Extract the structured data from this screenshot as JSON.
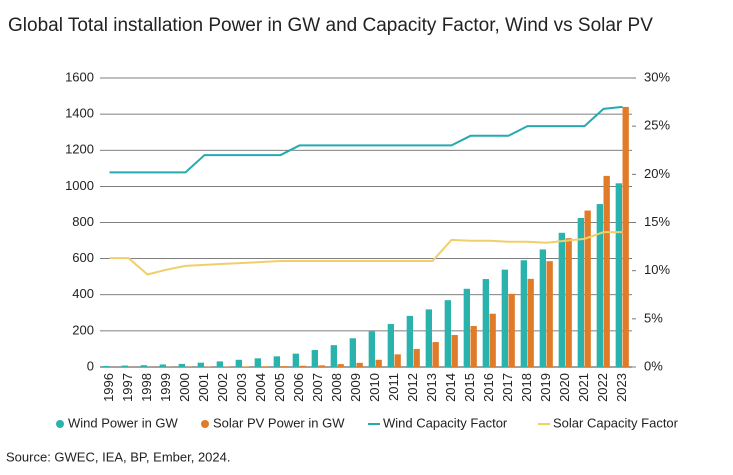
{
  "chart_data": {
    "type": "bar",
    "title": "Global Total installation Power in GW and Capacity Factor, Wind vs Solar PV",
    "source": "Source: GWEC, IEA, BP, Ember, 2024.",
    "categories": [
      "1996",
      "1997",
      "1998",
      "1999",
      "2000",
      "2001",
      "2002",
      "2003",
      "2004",
      "2005",
      "2006",
      "2007",
      "2008",
      "2009",
      "2010",
      "2011",
      "2012",
      "2013",
      "2014",
      "2015",
      "2016",
      "2017",
      "2018",
      "2019",
      "2020",
      "2021",
      "2022",
      "2023"
    ],
    "series": [
      {
        "name": "Wind Power in GW",
        "type": "bar",
        "axis": "y",
        "color": "#2ab3ad",
        "values": [
          6,
          8,
          10,
          14,
          17,
          24,
          31,
          40,
          48,
          59,
          74,
          94,
          121,
          159,
          198,
          238,
          283,
          319,
          370,
          433,
          487,
          539,
          591,
          651,
          743,
          825,
          902,
          1017
        ]
      },
      {
        "name": "Solar PV Power in GW",
        "type": "bar",
        "axis": "y",
        "color": "#e07b2a",
        "values": [
          0.3,
          0.4,
          0.5,
          1,
          1,
          2,
          2,
          3,
          4,
          5,
          7,
          9,
          16,
          23,
          40,
          70,
          100,
          138,
          177,
          227,
          295,
          405,
          488,
          586,
          713,
          866,
          1058,
          1440
        ]
      },
      {
        "name": "Wind Capacity Factor",
        "type": "line",
        "axis": "y2",
        "color": "#26aab0",
        "values": [
          20.2,
          20.2,
          20.2,
          20.2,
          20.2,
          22,
          22,
          22,
          22,
          22,
          23,
          23,
          23,
          23,
          23,
          23,
          23,
          23,
          23,
          24,
          24,
          24,
          25,
          25,
          25,
          25,
          26.8,
          27
        ]
      },
      {
        "name": "Solar Capacity Factor",
        "type": "line",
        "axis": "y2",
        "color": "#f0cf6a",
        "values": [
          11.3,
          11.3,
          9.6,
          10.1,
          10.5,
          10.6,
          10.7,
          10.8,
          10.9,
          11,
          11,
          11,
          11,
          11,
          11,
          11,
          11,
          11,
          13.2,
          13.1,
          13.1,
          13,
          13,
          12.9,
          13.1,
          13.3,
          14,
          14
        ]
      }
    ],
    "ylim": [
      0,
      1600
    ],
    "yticks": [
      0,
      200,
      400,
      600,
      800,
      1000,
      1200,
      1400,
      1600
    ],
    "y2lim": [
      0,
      30
    ],
    "y2ticks": [
      {
        "value": 0,
        "label": "0%"
      },
      {
        "value": 5,
        "label": "5%"
      },
      {
        "value": 10,
        "label": "10%"
      },
      {
        "value": 15,
        "label": "15%"
      },
      {
        "value": 20,
        "label": "20%"
      },
      {
        "value": 25,
        "label": "25%"
      },
      {
        "value": 30,
        "label": "30%"
      }
    ],
    "grid": true,
    "legend": "bottom"
  }
}
